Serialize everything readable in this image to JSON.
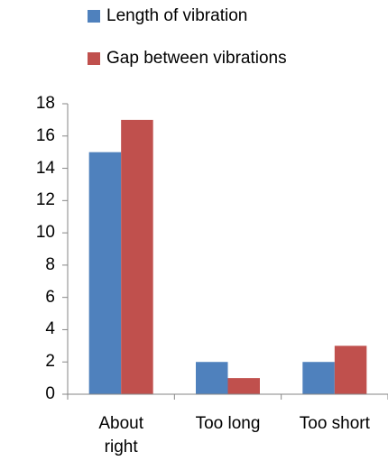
{
  "chart_data": {
    "type": "bar",
    "categories": [
      "About right",
      "Too long",
      "Too short"
    ],
    "series": [
      {
        "name": "Length of vibration",
        "color": "#4f81bd",
        "values": [
          15,
          2,
          2
        ]
      },
      {
        "name": "Gap between vibrations",
        "color": "#c0504d",
        "values": [
          17,
          1,
          3
        ]
      }
    ],
    "ylim": [
      0,
      18
    ],
    "yticks": [
      0,
      2,
      4,
      6,
      8,
      10,
      12,
      14,
      16,
      18
    ],
    "grid": false,
    "legend": "top"
  }
}
